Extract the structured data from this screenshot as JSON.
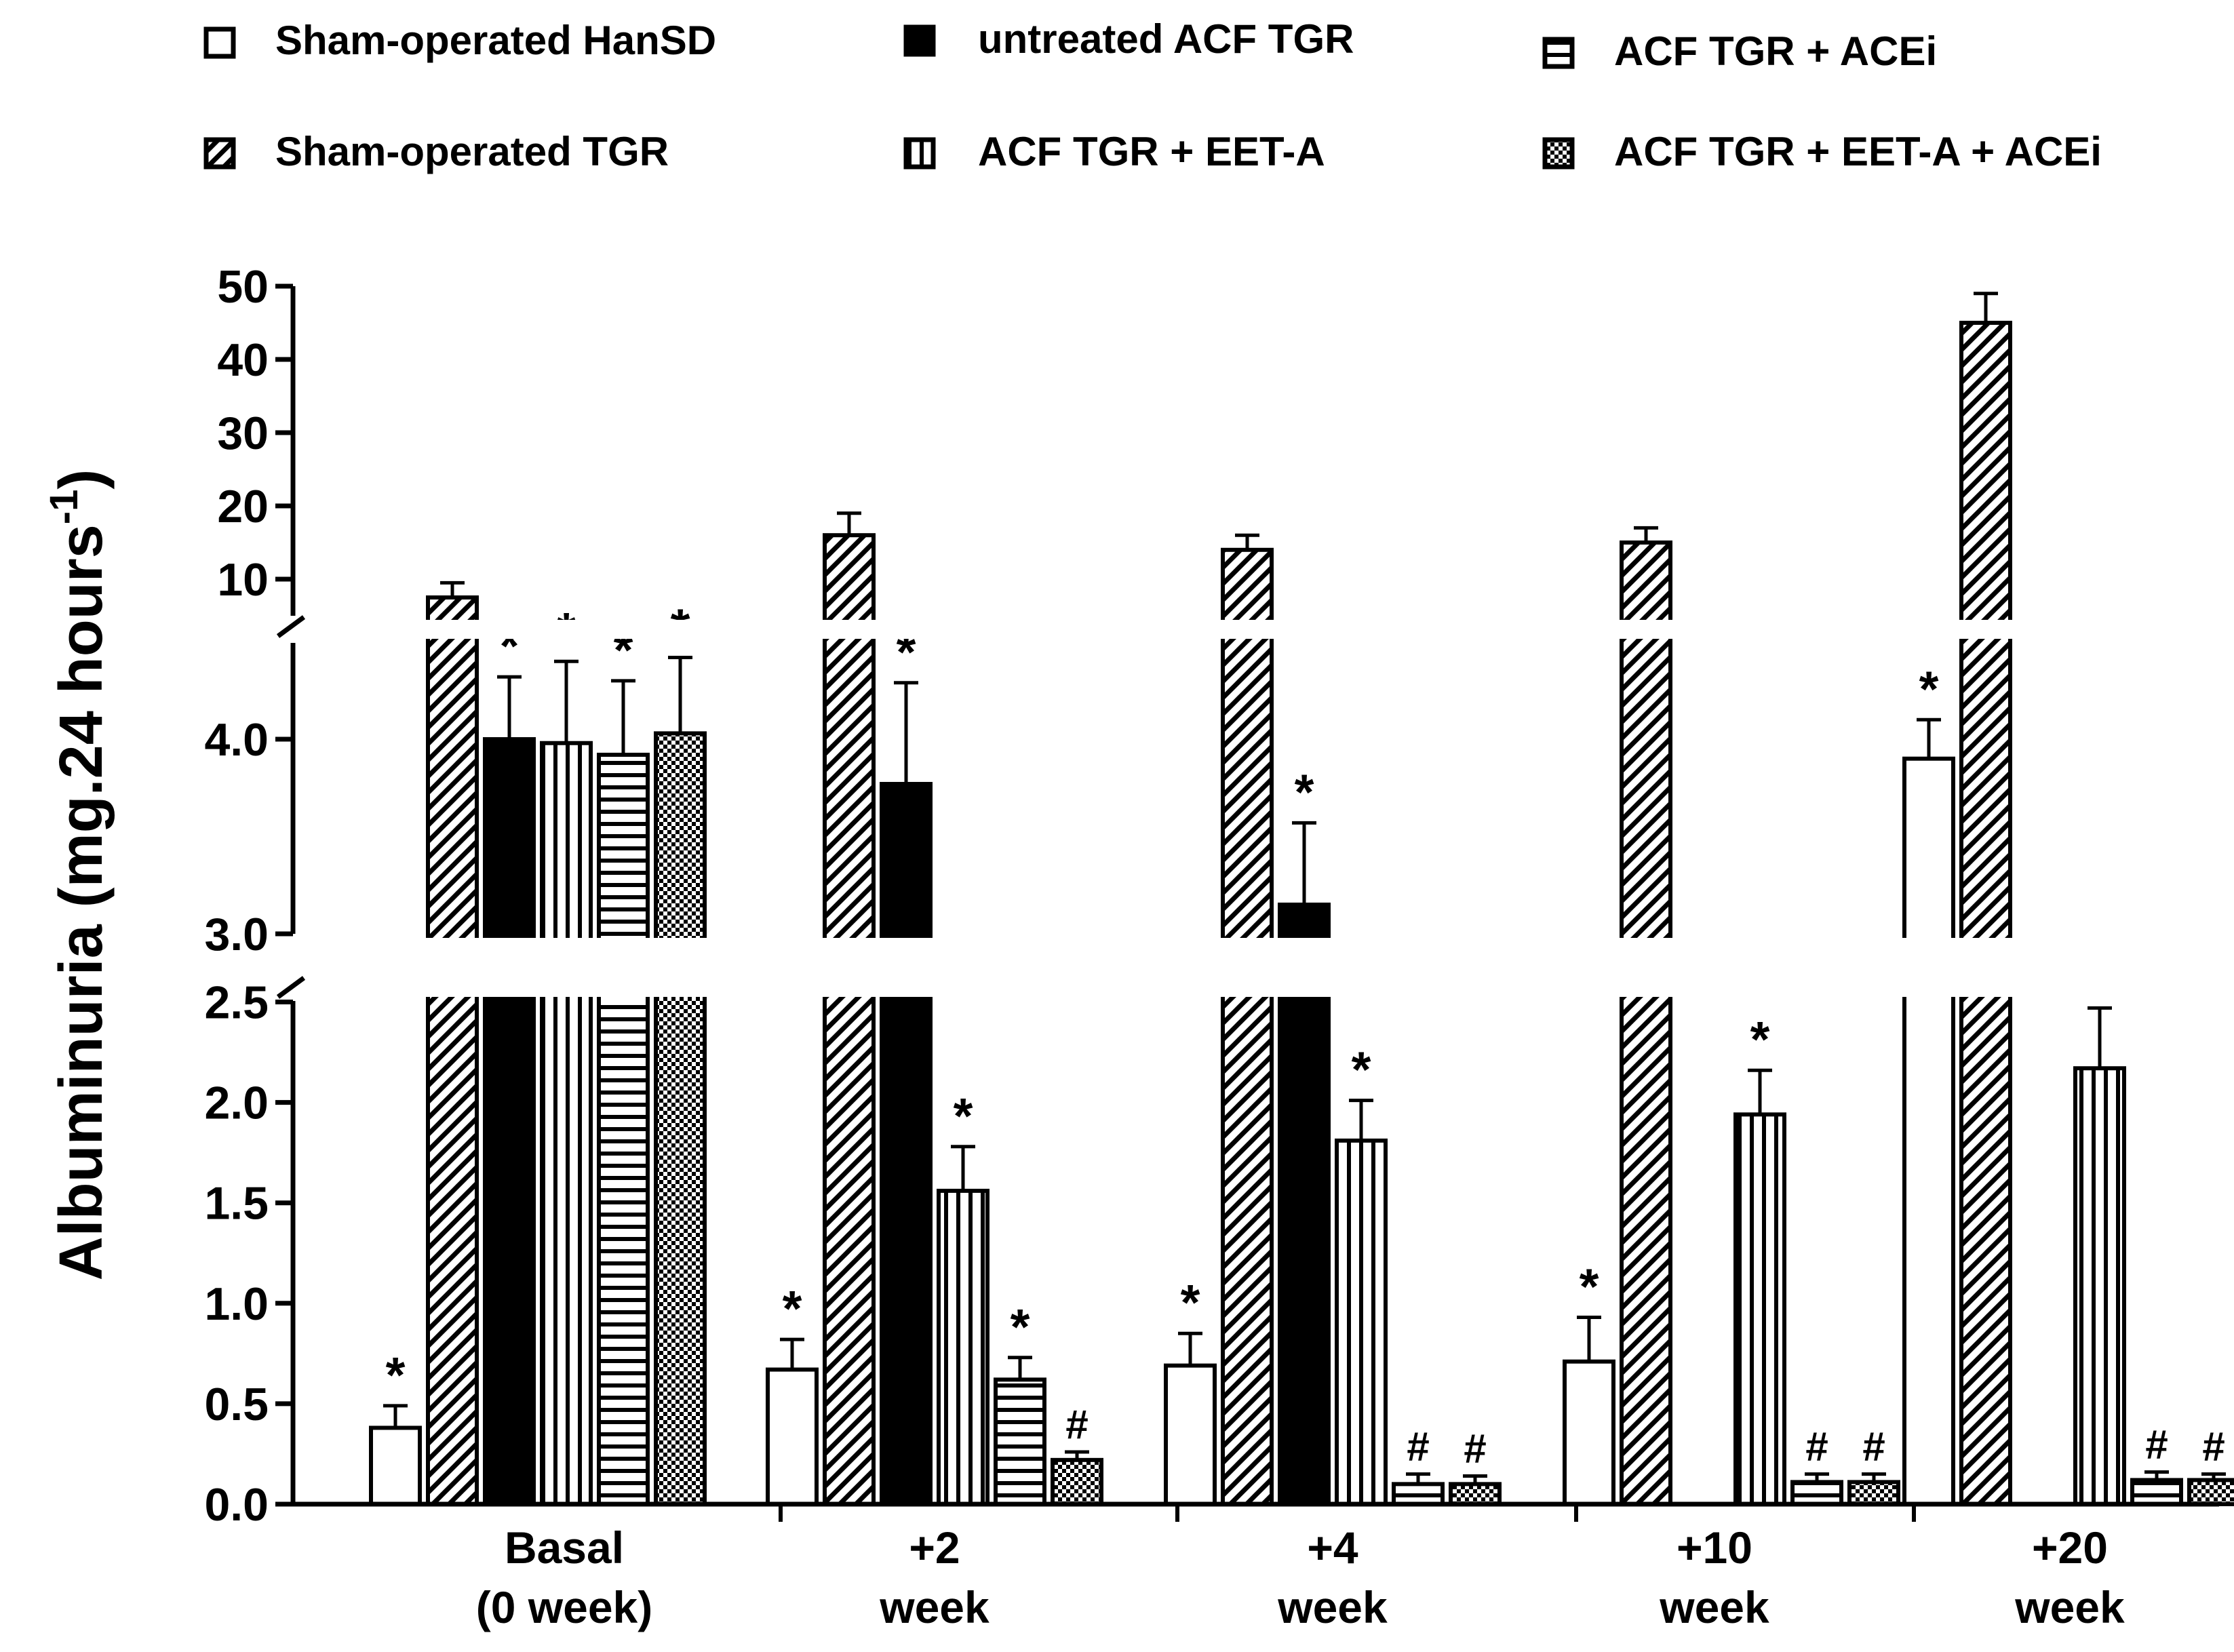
{
  "chart_data": {
    "type": "bar",
    "title": "",
    "ylabel": "Albuminuria (mg.24 hours",
    "ylabel_superscript": "-1",
    "ylabel_suffix": ")",
    "categories": [
      {
        "line1": "Basal",
        "line2": "(0 week)"
      },
      {
        "line1": "+2",
        "line2": "week"
      },
      {
        "line1": "+4",
        "line2": "week"
      },
      {
        "line1": "+10",
        "line2": "week"
      },
      {
        "line1": "+20",
        "line2": "week"
      }
    ],
    "axis_segments": [
      {
        "range": [
          0,
          2.5
        ],
        "ticks": [
          "0.0",
          "0.5",
          "1.0",
          "1.5",
          "2.0",
          "2.5"
        ]
      },
      {
        "range": [
          3.0,
          4.5
        ],
        "ticks": [
          "3.0",
          "4.0"
        ]
      },
      {
        "range": [
          5,
          50
        ],
        "ticks": [
          "10",
          "20",
          "30",
          "40",
          "50"
        ]
      }
    ],
    "legend_position": "top",
    "series": [
      {
        "name": "Sham-operated HanSD",
        "pattern": "open",
        "values": [
          0.38,
          0.67,
          0.69,
          0.71,
          3.9
        ],
        "errors": [
          0.11,
          0.15,
          0.16,
          0.22,
          0.2
        ],
        "markers": [
          "*",
          "*",
          "*",
          "*",
          "*"
        ]
      },
      {
        "name": "Sham-operated TGR",
        "pattern": "diagonal",
        "values": [
          7.5,
          16,
          14,
          15,
          45
        ],
        "errors": [
          2,
          3,
          2,
          2,
          4
        ],
        "markers": [
          "",
          "",
          "",
          "",
          ""
        ]
      },
      {
        "name": "untreated ACF TGR",
        "pattern": "solid",
        "values": [
          4.0,
          3.77,
          3.15,
          null,
          null
        ],
        "errors": [
          0.32,
          0.52,
          0.42,
          null,
          null
        ],
        "markers": [
          "*",
          "*",
          "*",
          "",
          ""
        ]
      },
      {
        "name": "ACF TGR + EET-A",
        "pattern": "vertical",
        "values": [
          3.98,
          1.56,
          1.81,
          1.94,
          2.17
        ],
        "errors": [
          0.42,
          0.22,
          0.2,
          0.22,
          0.3
        ],
        "markers": [
          "*",
          "*",
          "*",
          "*",
          "*"
        ]
      },
      {
        "name": "ACF TGR + ACEi",
        "pattern": "horizontal",
        "values": [
          3.92,
          0.62,
          0.1,
          0.11,
          0.12
        ],
        "errors": [
          0.38,
          0.11,
          0.05,
          0.04,
          0.04
        ],
        "markers": [
          "*",
          "*",
          "#",
          "#",
          "#"
        ]
      },
      {
        "name": "ACF TGR + EET-A + ACEi",
        "pattern": "checker",
        "values": [
          4.03,
          0.22,
          0.1,
          0.11,
          0.12
        ],
        "errors": [
          0.39,
          0.04,
          0.04,
          0.04,
          0.03
        ],
        "markers": [
          "*",
          "#",
          "#",
          "#",
          "#"
        ]
      }
    ]
  }
}
